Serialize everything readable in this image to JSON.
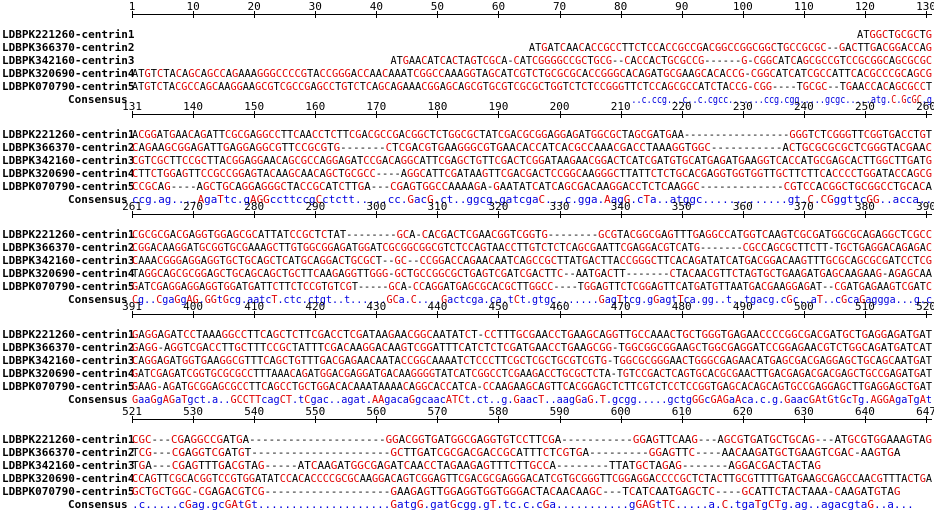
{
  "labels": [
    "LDBPK221260-centrin1",
    "LDBPK366370-centrin2",
    "LDBPK342160-centrin3",
    "LDBPK320690-centrin4",
    "LDBPK070790-centrin5",
    "Consensus"
  ],
  "blocks": [
    {
      "ruler": [
        "1",
        "10",
        "20",
        "30",
        "40",
        "50",
        "60",
        "70",
        "80",
        "90",
        "100",
        "110",
        "120",
        "130"
      ],
      "rows": [
        "                                                                                                                    ATGGCTGCGCTG",
        "                                                                ATGATCAACACCGCCTTCTCCACCGCCGACGGCCGGCGGCTGCCGCGC--GACTTGACGGACCAG",
        "                                          ATGAACATCACTAGTCGCA-CATCGGGGCCGCTGCG--CACCACTGCGCCG------G-CGGCATCAGCGCCGTCCGCGGCAGCGCGC",
        "ATGTCTACAGCAGCCAGAAAGGGCCCCGTACCGGGACCAACAAATCGGCCAAAGGTAGCATCGTCTGCGCGCACCGGGCACAGATGCGAAGCACACCG-CGGCATCATCGCCATTCACGCCCGCAGCG",
        "ATGTCTACGCCAGCAAGGAAGCGTCGCCGAGCCTGTCTCAGCAGAAACGGAGCAGCGTGCGTCGCGCTGGTCTCTCCGGGTTCTCCAGCGCCATCTACCG-CGG----TGCGC--TGAACCACAGCGCCT",
        "                                                                                                  ..c.ccg...c..c.cgcc.......ccg.cgg.....gcgc.....atg.C.GcGC.g"
      ]
    },
    {
      "ruler": [
        "131",
        "140",
        "150",
        "160",
        "170",
        "180",
        "190",
        "200",
        "210",
        "220",
        "230",
        "240",
        "250",
        "260"
      ],
      "rows": [
        "ACGGATGAACAGATTCGCGAGGCCTTCAACCTCTTCGACGCCGACGGCTCTGGCGCTATCGACGCGGAGGAGATGGCGCTAGCGATGAA-----------------GGGTCTCGGGTTCGGTGACCTGT",
        "CAGAAGCGGAGATTGAGGAGGCGTTCCGCGTG-------CTCGACGTGAAGGGCGTGAACACCATCACGCCAAACGACCTAAAGGTGGC-----------ACTGCGCGCGCTCGGGTACGAAC",
        "CGTCGCTTCCGCTTACGGAGGAACAGCGCCAGGAGATCCGACAGGCATTCGAGCTGTTCGACTCGGATAAGAACGGACTCATCGATGTGCATGAGATGAAGGTCACCATGCGAGCACTTGGCTTGATG",
        "CTTCTGGAGTTCCGCCGGAGTACAAGCAACAGCTGCGCC----AGGCATTCGATAAGTTCGACGACTCCGGCAAGGGCTTATTCTCTGCACGAGGTGGTGGTTGCTTCTTCACCCCTGGATACCAGCG",
        "CCGCAG----AGCTGCAGGAGGGCTACCGCATCTTGA---CGAGTGGCCAAAAGA-GAATATCATCAGCGACAAGGACCTCTCAAGGC-------------CGTCCACGGCTGCGGCCTGCACA",
        "ccg.ag....AgaTtc.gAGGccttccgCctctt.....cc.GacG.ct..ggcg.gatcgaC...c.gga.AagG.cTa..atggc.............gt.C.CGggttcGG..acca.."
      ]
    },
    {
      "ruler": [
        "261",
        "270",
        "280",
        "290",
        "300",
        "310",
        "320",
        "330",
        "340",
        "350",
        "360",
        "370",
        "380",
        "390"
      ],
      "rows": [
        "CGCGCGACGAGGTGGAGCGCATTATCCGCTCTAT--------GCA-CACGACTCGAACGGTCGGTG--------GCGTACGGCGAGTTTGAGGCCATGGTCAAGTCGCGATGGCGCAGAGGCTCGCC",
        "CGGACAAGGATGCGGTGCGAAAGCTTGTGGCGGAGATGGATCGCGGCGGCGTCTCCAGTAACCTTGTCTCTCAGCGAATTCGAGGACGTCATG-------CGCCAGCGCTTCTT-TGCTGAGGACAGAGAC",
        "CAAACGGGAGGAGGTGCTGCAGCTCATGCAGGACTGCGCT--GC--CCGGACCAGAACAATCAGCCGCTTATGACTTACCGGGCTTCACAGATATCATGACGGACAAGTTTGCGCAGCGCGATCCTCG",
        "TAGGCAGCGCGGAGCTGCAGCAGCTGCTTCAAGAGGTTGGG-GCTGCCGGCGCTGAGTCGATCGACTTC--AATGACTT-------CTACAACGTTCTAGTGCTGAAGATGAGCAAGAAG-AGAGCAA",
        "GATCGAGGAGGAGGTGGATGATTCTTCTCCGTGTCGT-----GCA-CCAGGATGAGCGCACGCTTGGCC----TGGAGTTCTCGGAGTTCATGATGTTAATGACGAAGGAGAT--CGATGAGAAGTCGATC",
        "Cg..CgaGgAG.GGtGcg.aatcT.ctc.ctgt..t......GCa.C....Gactcga.ca.tCt.gtgc.......GagTtcg.gGagtTca.gg..t..tgacg.cGc..aT..cGcaGaggga...g.c"
      ]
    },
    {
      "ruler": [
        "391",
        "400",
        "410",
        "420",
        "430",
        "440",
        "450",
        "460",
        "470",
        "480",
        "490",
        "500",
        "510",
        "520"
      ],
      "rows": [
        "GAGGAGATCCTAAAGGCCTTCAGCTCTTCGACCTCGATAAGAACGGCAATATCT-CCTTTGCGAACCTGAAGCAGGTTGCCAAACTGCTGGGTGAGAACCCCGGCGACGATGCTGAGGAGATGAT",
        "GAGG-AGGTCGACCTTGCTTTCCGCTATTTCGACAAGGACAAGTCGGATTTCATCTCTCGATGAACCTGAAGCGG-TGGCGGCGGAAGCTGGCGAGGATCCGGAGAACGTCTGGCAGATGATCAT",
        "CAGGAGATGGTGAAGGCGTTTCAGCTGTTTGACGAGAACAATACCGGCAAAATCTCCCTTCGCTCGCTGCGTCGTG-TGGCGCGGGAACTGGGCGAGAACATGAGCGACGAGGAGCTGCAGCAATGAT",
        "GATCGAGATCGGTGCGCGCCTTTAAACAGATGGACGAGGATGACAAGGGGTATCATCGGCCTCGAAGACCTGCGCTCTA-TGTCCGACTCAGTGCACGCGAACTTGACGAGACGACGAGCTGCCGAGATGAT",
        "GAAG-AGATGCGGAGCGCCTTCAGCCTGCTGGACACAAATAAAACAGGCACCATCA-CCAAGAAGCAGTTCACGGAGCTCTTCGTCTCCTCCGGTGAGCACAGCAGTGCCGAGGAGCTTGAGGAGCTGAT",
        "GaaGgAGaTgct.a..GCCTTcagCT.tCgac..agat.AAgacaGgcaacATCt.ct..g.GaacT..aagGaG.T.gcgg.....gctgGGcGAGaAca.c.g.GaacGAtGtGcTg.AGGAgaTgAt"
      ]
    },
    {
      "ruler": [
        "521",
        "530",
        "540",
        "550",
        "560",
        "570",
        "580",
        "590",
        "600",
        "610",
        "620",
        "630",
        "640",
        "647"
      ],
      "rows": [
        "CGC---CGAGGCCGATGA---------------------GGACGGTGATGGCGAGGTGTCCTTCGA-----------GGAGTTCAAG---AGCGTGATGCTGCAG---ATGCGTGGAAAGTAG",
        "TCG---CGAGGTCGATGT---------------------GCTTGATCGCGACGACCGCATTTCTCGTGA---------GGAGTTC----AACAAGATGCTGAAGTCGAC-AAGTGA",
        "TGA---CGAGTTTGACGTAG-----ATCAAGATGGCGAGATCAACCTAGAAGAGTTTCTTGCCA--------TTATGCTAGAG-------AGGACGACTACTAG",
        "CCAGTTCGCACGGTCCGTGGATATCCACACCCCGCGCAAGGACAGTCGGAGTTCGACGCGAGGGACATCGTGCGGGTTCGGAGGACCCCGCTCTACTTGCGTTTTGATGAAGCGAGCCAACGTTTACTGA",
        "GCTGCTGGC-CGAGACGTCG-------------------GAAGAGTTGGAGGTGGTGGGACTACAACAAGC---TCATCAATGAGCTC----GCATTCTACTAAA-CAAGATGTAG",
        ".c.....cGag.gcGAtGt....................GatgG.gatGcgg.gT.tc.c.cGa...........gGAGtTC.....a.C.tgaTgCTg.ag..agacgtaG..a..."
      ]
    }
  ]
}
